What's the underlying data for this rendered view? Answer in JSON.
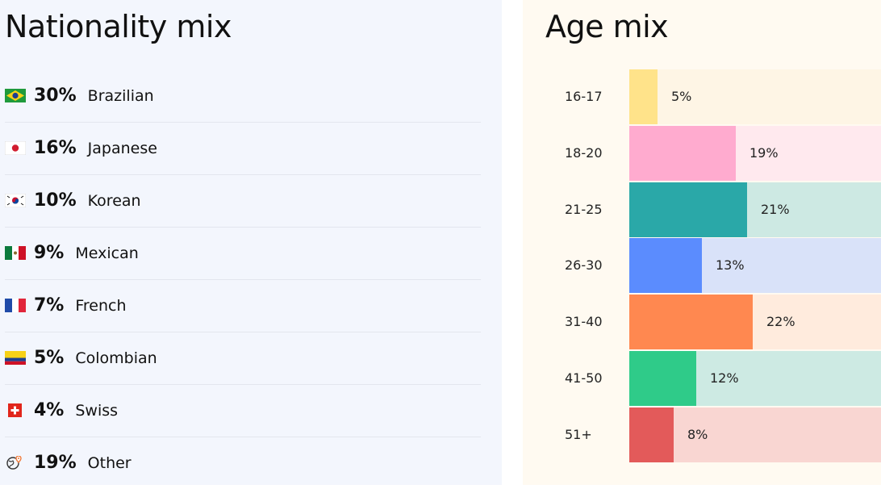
{
  "nationality": {
    "title": "Nationality mix",
    "rows": [
      {
        "flag": "brazil-flag-icon",
        "pct": "30%",
        "label": "Brazilian"
      },
      {
        "flag": "japan-flag-icon",
        "pct": "16%",
        "label": "Japanese"
      },
      {
        "flag": "korea-flag-icon",
        "pct": "10%",
        "label": "Korean"
      },
      {
        "flag": "mexico-flag-icon",
        "pct": "9%",
        "label": "Mexican"
      },
      {
        "flag": "france-flag-icon",
        "pct": "7%",
        "label": "French"
      },
      {
        "flag": "colombia-flag-icon",
        "pct": "5%",
        "label": "Colombian"
      },
      {
        "flag": "switzerland-flag-icon",
        "pct": "4%",
        "label": "Swiss"
      },
      {
        "flag": "globe-icon",
        "pct": "19%",
        "label": "Other"
      }
    ]
  },
  "age": {
    "title": "Age mix",
    "rows": [
      {
        "label": "16-17",
        "value": 5,
        "value_label": "5%",
        "color": "#ffe38a",
        "track": "#fef5e5"
      },
      {
        "label": "18-20",
        "value": 19,
        "value_label": "19%",
        "color": "#ffabcf",
        "track": "#ffe9ee"
      },
      {
        "label": "21-25",
        "value": 21,
        "value_label": "21%",
        "color": "#2aa8a8",
        "track": "#cde9e3"
      },
      {
        "label": "26-30",
        "value": 13,
        "value_label": "13%",
        "color": "#5b8cfe",
        "track": "#d9e2f9"
      },
      {
        "label": "31-40",
        "value": 22,
        "value_label": "22%",
        "color": "#ff8850",
        "track": "#ffebdd"
      },
      {
        "label": "41-50",
        "value": 12,
        "value_label": "12%",
        "color": "#2fcb89",
        "track": "#cdeae3"
      },
      {
        "label": "51+",
        "value": 8,
        "value_label": "8%",
        "color": "#e35a5a",
        "track": "#f9d6d2"
      }
    ]
  }
}
